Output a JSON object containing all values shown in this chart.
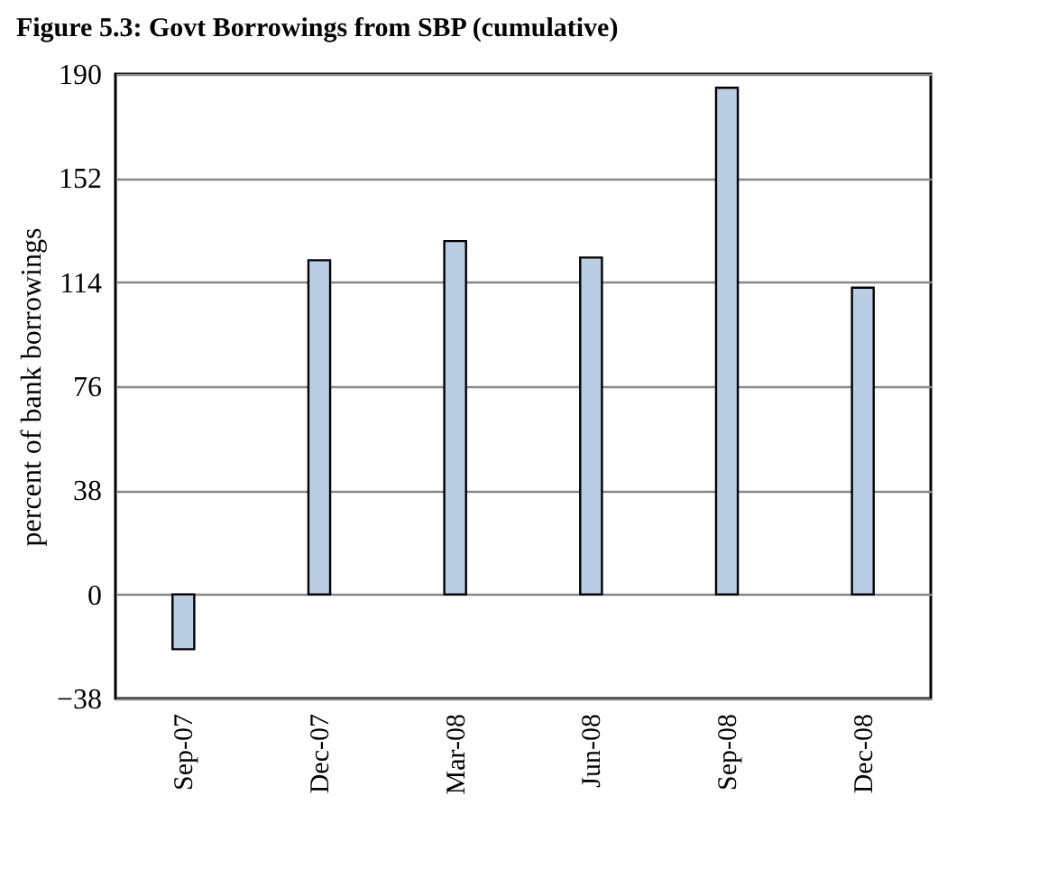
{
  "chart_data": {
    "type": "bar",
    "title": "Figure 5.3: Govt Borrowings from SBP (cumulative)",
    "ylabel": "percent of bank borrowings",
    "categories": [
      "Sep-07",
      "Dec-07",
      "Mar-08",
      "Jun-08",
      "Sep-08",
      "Dec-08"
    ],
    "values": [
      -20,
      122,
      129,
      123,
      185,
      112
    ],
    "color": "#b9cde5",
    "ylim": [
      -38,
      190
    ],
    "yticks": [
      -38,
      0,
      38,
      76,
      114,
      152,
      190
    ],
    "grid": "y"
  }
}
